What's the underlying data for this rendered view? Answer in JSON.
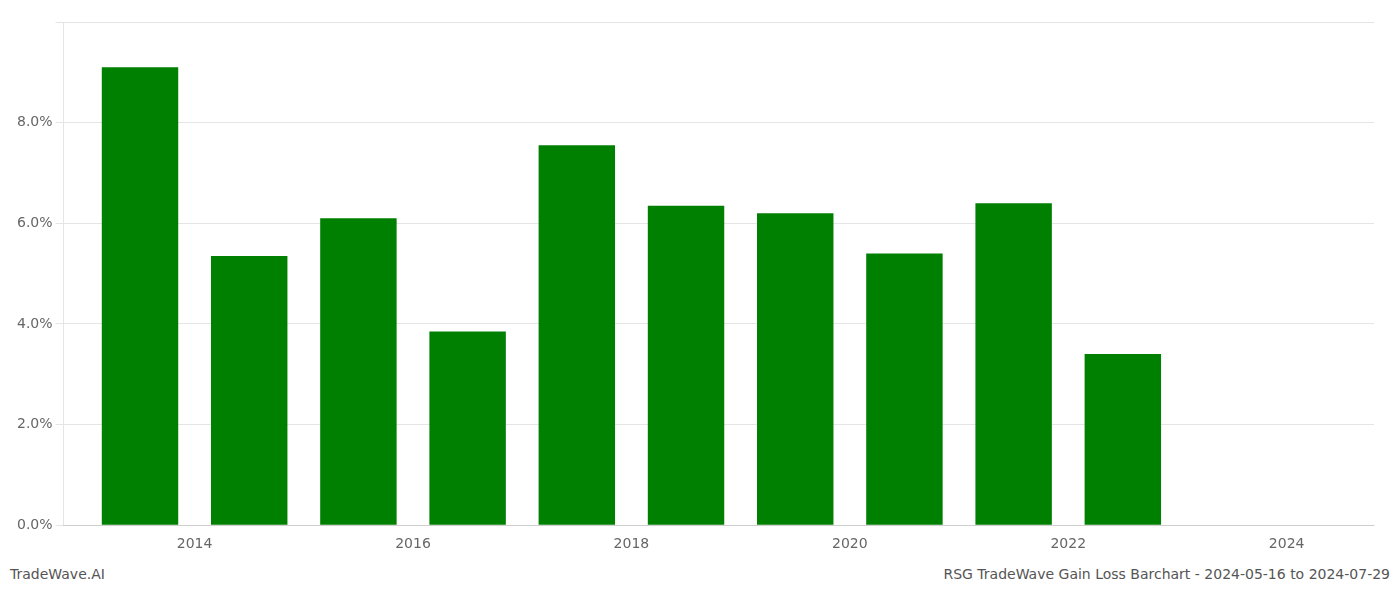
{
  "chart_data": {
    "type": "bar",
    "annotations": [
      "TradeWave.AI",
      "RSG TradeWave Gain Loss Barchart - 2024-05-16 to 2024-07-29"
    ],
    "x": [
      2013.5,
      2014.5,
      2015.5,
      2016.5,
      2017.5,
      2018.5,
      2019.5,
      2020.5,
      2021.5,
      2022.5
    ],
    "values": [
      0.091,
      0.0535,
      0.061,
      0.0385,
      0.0755,
      0.0635,
      0.062,
      0.054,
      0.064,
      0.034
    ],
    "color": "#008000",
    "xlim": [
      2012.8,
      2024.8
    ],
    "xticks": [
      2014,
      2016,
      2018,
      2020,
      2022,
      2024
    ],
    "ylim": [
      0,
      0.1
    ],
    "yticks": [
      {
        "value": 0.0,
        "label": "0.0%"
      },
      {
        "value": 0.02,
        "label": "2.0%"
      },
      {
        "value": 0.04,
        "label": "4.0%"
      },
      {
        "value": 0.06,
        "label": "6.0%"
      },
      {
        "value": 0.08,
        "label": "8.0%"
      },
      {
        "value": 0.1,
        "label": ""
      }
    ],
    "grid": true
  }
}
